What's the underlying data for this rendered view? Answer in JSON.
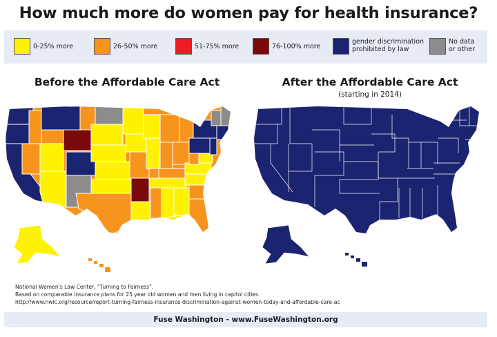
{
  "title": "How much more do women pay for health insurance?",
  "legend": [
    {
      "label": "0-25% more",
      "color": "#fff200"
    },
    {
      "label": "26-50% more",
      "color": "#f7941d"
    },
    {
      "label": "51-75% more",
      "color": "#ed1c24"
    },
    {
      "label": "76-100% more",
      "color": "#7a0a0a"
    },
    {
      "label": "gender discrimination\nprohibited by law",
      "color": "#1b2470"
    },
    {
      "label": "No data\nor other",
      "color": "#8c8c8c"
    }
  ],
  "maps": {
    "before": {
      "title": "Before the Affordable Care Act"
    },
    "after": {
      "title": "After the Affordable Care Act",
      "subtitle": "(starting in 2014)"
    }
  },
  "sources": [
    "National Women's Law Center, “Turning to Fairness”.",
    "Based on comparable insurance plans for 25 year old women and men living in capitol cities.",
    "http://www.nwlc.org/resource/report-turning-fairness-insurance-discrimination-against-women-today-and-affordable-care-ac"
  ],
  "footer": "Fuse Washington - www.FuseWashington.org"
}
